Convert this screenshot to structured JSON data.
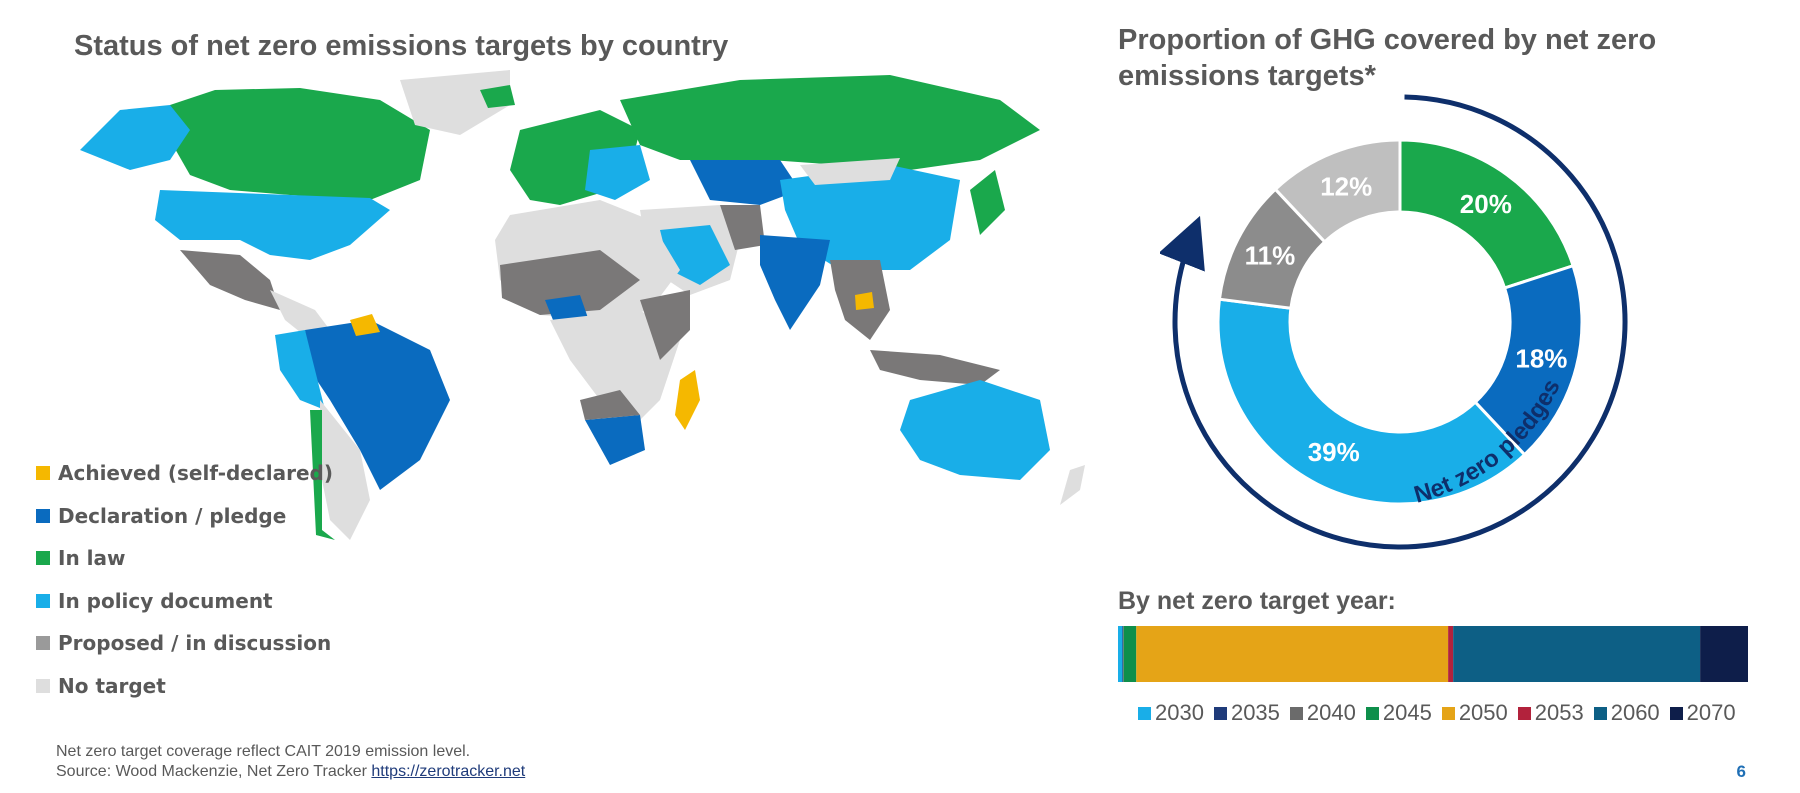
{
  "map": {
    "title": "Status of net zero emissions targets by country",
    "legend": [
      {
        "label": "Achieved (self-declared)",
        "color": "#f5b800"
      },
      {
        "label": "Declaration / pledge",
        "color": "#0a6bbf"
      },
      {
        "label": "In law",
        "color": "#1aa84c"
      },
      {
        "label": "In policy document",
        "color": "#19aee8"
      },
      {
        "label": "Proposed / in discussion",
        "color": "#7a7878"
      },
      {
        "label": "No target",
        "color": "#dedede"
      }
    ]
  },
  "chart_data": [
    {
      "type": "pie",
      "title": "Proportion of GHG covered by net zero emissions targets*",
      "categories": [
        "In law",
        "Declaration / pledge",
        "In policy document",
        "Proposed / in discussion",
        "No target"
      ],
      "values": [
        20,
        18,
        39,
        11,
        12
      ],
      "labels": [
        "20%",
        "18%",
        "39%",
        "11%",
        "12%"
      ],
      "colors": [
        "#1aa84c",
        "#0a6bbf",
        "#19aee8",
        "#8c8c8c",
        "#bfbfbf"
      ],
      "annotation": "Net zero pledges"
    },
    {
      "type": "bar",
      "title": "By net zero target year:",
      "categories": [
        "2030",
        "2035",
        "2040",
        "2045",
        "2050",
        "2053",
        "2060",
        "2070"
      ],
      "values": [
        0.7,
        0.1,
        0.1,
        2.0,
        49.5,
        0.8,
        39.2,
        7.6
      ],
      "colors": [
        "#19aee8",
        "#1f3b7a",
        "#6b6b6b",
        "#0e8f4b",
        "#e5a417",
        "#b2223c",
        "#0d5f85",
        "#0e1e4a"
      ]
    }
  ],
  "footnote": {
    "line1": "Net zero target coverage reflect CAIT 2019 emission level.",
    "line2_prefix": "Source: Wood Mackenzie, Net Zero Tracker ",
    "link": "https://zerotracker.net"
  },
  "page_number": "6"
}
